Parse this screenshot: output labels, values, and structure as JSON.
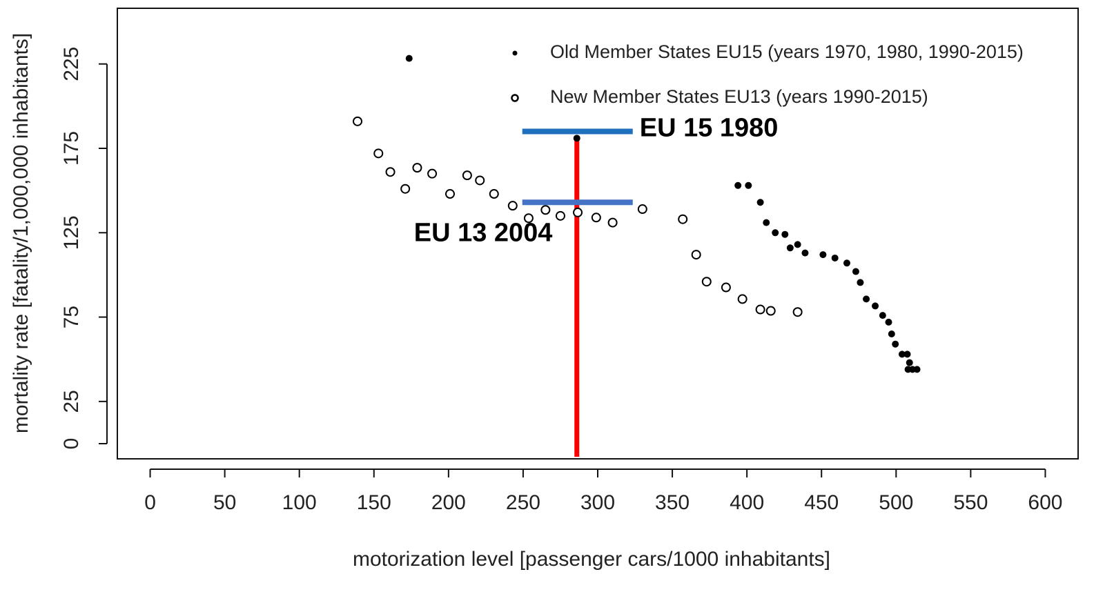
{
  "chart_data": {
    "type": "scatter",
    "xlabel": "motorization level [passenger cars/1000 inhabitants]",
    "ylabel": "mortality rate [fatality/1,000,000 inhabitants]",
    "xlim": [
      -22,
      622
    ],
    "ylim": [
      -9,
      258
    ],
    "xticks": [
      0,
      50,
      100,
      150,
      200,
      250,
      300,
      350,
      400,
      450,
      500,
      550,
      600
    ],
    "yticks": [
      0,
      25,
      75,
      125,
      175,
      225
    ],
    "legend": "topright",
    "series": [
      {
        "name": "Old Member States EU15 (years 1970, 1980, 1990-2015)",
        "color": "#000000",
        "marker": "filled",
        "x": [
          173.6,
          286,
          394,
          401,
          409,
          413,
          419,
          425.5,
          429,
          434,
          439,
          451,
          459,
          467,
          473,
          476,
          480,
          486,
          491,
          495,
          497,
          499.5,
          504,
          507.5,
          509,
          508,
          511,
          514
        ],
        "values": [
          228.3,
          181,
          153,
          153,
          143,
          131,
          125,
          124,
          116,
          118,
          113,
          112,
          110,
          107,
          102,
          95.5,
          85.7,
          81.6,
          76,
          72,
          65,
          59,
          53,
          53,
          48,
          44,
          44,
          44
        ]
      },
      {
        "name": "New Member States EU13 (years 1990-2015)",
        "color": "#000000",
        "marker": "open",
        "x": [
          139,
          153,
          161,
          171,
          179,
          189,
          201,
          212.5,
          221,
          230.5,
          243,
          253.7,
          265,
          275,
          286.6,
          299,
          310,
          330,
          357,
          366,
          373,
          386,
          397,
          409,
          416,
          434
        ],
        "values": [
          191,
          172,
          161,
          151,
          163.5,
          160,
          148,
          159,
          156,
          148,
          141,
          133.6,
          138.5,
          135,
          137,
          134,
          131,
          139,
          133,
          112,
          96,
          92.6,
          85.7,
          79.5,
          78.7,
          78
        ]
      }
    ],
    "vline": {
      "x": 286,
      "color": "#ff0000"
    },
    "annotations": [
      {
        "text": "EU 15 1980",
        "y": 185,
        "color": "#1f6fbf"
      },
      {
        "text": "EU 13 2004",
        "y": 143,
        "color": "#4472c4"
      }
    ]
  }
}
